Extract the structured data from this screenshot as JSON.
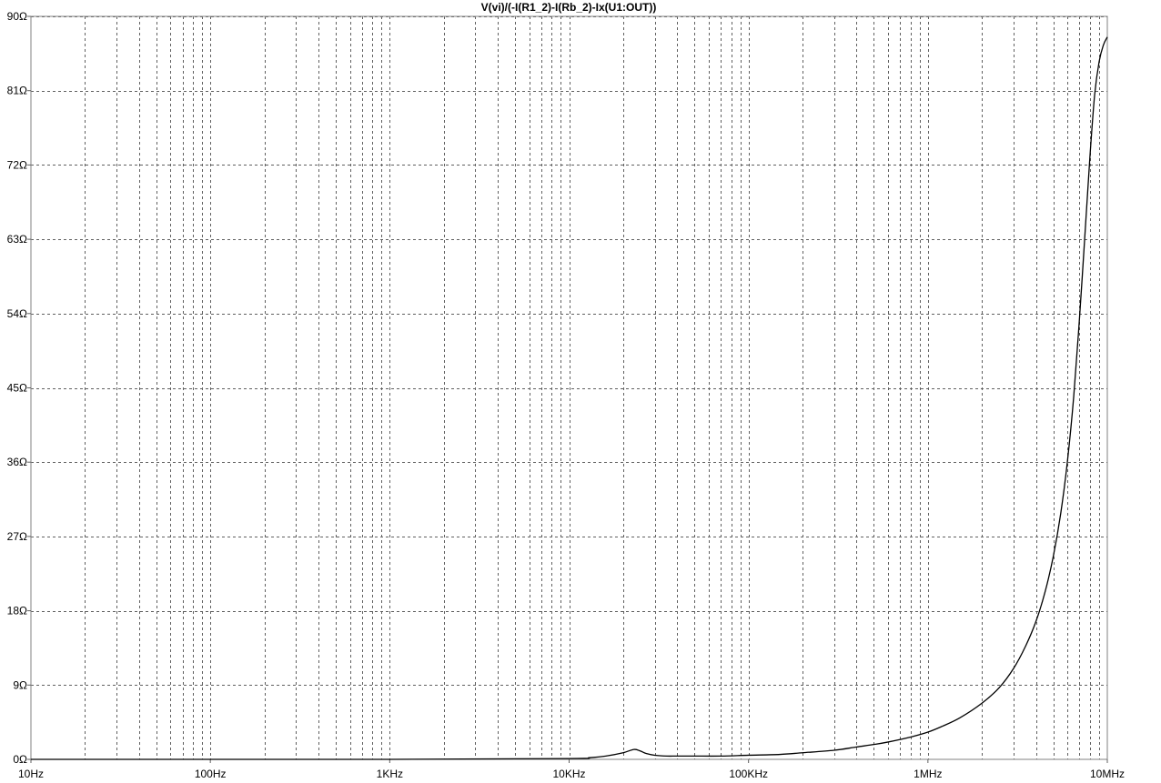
{
  "chart_data": {
    "type": "line",
    "title": "V(vi)/(-I(R1_2)-I(Rb_2)-Ix(U1:OUT))",
    "xscale": "log",
    "xlim": [
      10,
      10000000
    ],
    "ylim": [
      0,
      90
    ],
    "grid": true,
    "x_tick_values": [
      10,
      100,
      1000,
      10000,
      100000,
      1000000,
      10000000
    ],
    "x_tick_labels": [
      "10Hz",
      "100Hz",
      "1KHz",
      "10KHz",
      "100KHz",
      "1MHz",
      "10MHz"
    ],
    "y_tick_values": [
      0,
      9,
      18,
      27,
      36,
      45,
      54,
      63,
      72,
      81,
      90
    ],
    "y_tick_labels": [
      "0Ω",
      "9Ω",
      "18Ω",
      "27Ω",
      "36Ω",
      "45Ω",
      "54Ω",
      "63Ω",
      "72Ω",
      "81Ω",
      "90Ω"
    ],
    "series": [
      {
        "x": [
          10,
          1000,
          10000,
          13000,
          16000,
          20000,
          23000,
          25000,
          27000,
          30000,
          35000,
          40000,
          50000,
          70000,
          100000,
          150000,
          200000,
          300000,
          400000,
          500000,
          600000,
          800000,
          1000000,
          1200000,
          1500000,
          2000000,
          2500000,
          3000000,
          3500000,
          4000000,
          4500000,
          5000000,
          5500000,
          6000000,
          6500000,
          7000000,
          7500000,
          8000000,
          8500000,
          9000000,
          9500000,
          10000000
        ],
        "values": [
          0,
          0,
          0.1,
          0.2,
          0.4,
          0.8,
          1.2,
          1.0,
          0.7,
          0.5,
          0.4,
          0.4,
          0.4,
          0.4,
          0.5,
          0.6,
          0.8,
          1.1,
          1.5,
          1.8,
          2.1,
          2.7,
          3.3,
          4.0,
          5.0,
          6.8,
          8.7,
          11.0,
          13.7,
          16.7,
          20.3,
          24.6,
          29.8,
          36.2,
          44.0,
          53.5,
          63.5,
          73.0,
          80.5,
          84.5,
          86.5,
          87.5
        ]
      }
    ]
  }
}
